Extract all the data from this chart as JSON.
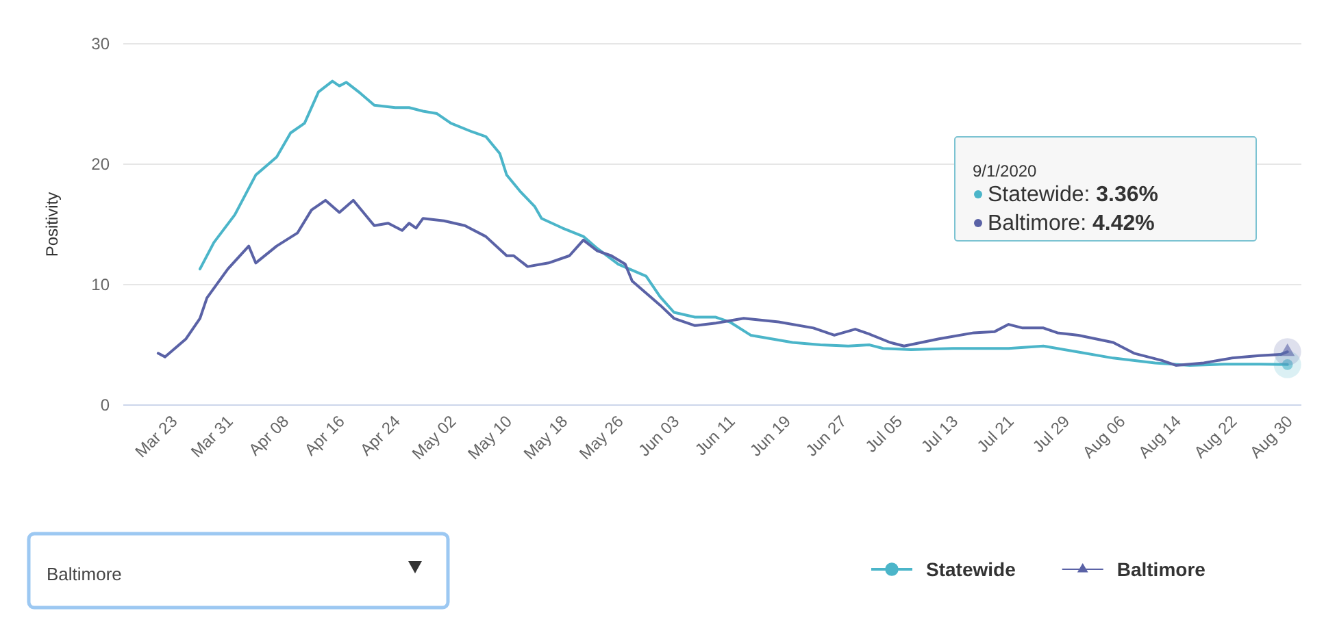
{
  "chart_data": {
    "type": "line",
    "ylabel": "Positivity",
    "ylim": [
      0,
      30
    ],
    "yticks": [
      0,
      10,
      20,
      30
    ],
    "grid": "y",
    "legend": "bottom right",
    "line_style": "solid",
    "xlim": [
      "2020-03-18",
      "2020-09-03"
    ],
    "xticks": [
      {
        "value": "2020-03-23",
        "label": "Mar 23"
      },
      {
        "value": "2020-03-31",
        "label": "Mar 31"
      },
      {
        "value": "2020-04-08",
        "label": "Apr 08"
      },
      {
        "value": "2020-04-16",
        "label": "Apr 16"
      },
      {
        "value": "2020-04-24",
        "label": "Apr 24"
      },
      {
        "value": "2020-05-02",
        "label": "May 02"
      },
      {
        "value": "2020-05-10",
        "label": "May 10"
      },
      {
        "value": "2020-05-18",
        "label": "May 18"
      },
      {
        "value": "2020-05-26",
        "label": "May 26"
      },
      {
        "value": "2020-06-03",
        "label": "Jun 03"
      },
      {
        "value": "2020-06-11",
        "label": "Jun 11"
      },
      {
        "value": "2020-06-19",
        "label": "Jun 19"
      },
      {
        "value": "2020-06-27",
        "label": "Jun 27"
      },
      {
        "value": "2020-07-05",
        "label": "Jul 05"
      },
      {
        "value": "2020-07-13",
        "label": "Jul 13"
      },
      {
        "value": "2020-07-21",
        "label": "Jul 21"
      },
      {
        "value": "2020-07-29",
        "label": "Jul 29"
      },
      {
        "value": "2020-08-06",
        "label": "Aug 06"
      },
      {
        "value": "2020-08-14",
        "label": "Aug 14"
      },
      {
        "value": "2020-08-22",
        "label": "Aug 22"
      },
      {
        "value": "2020-08-30",
        "label": "Aug 30"
      }
    ],
    "annotations": [
      "9/1/2020",
      "Statewide: 3.36%",
      "Baltimore: 4.42%",
      "Baltimore"
    ],
    "series": [
      {
        "name": "Statewide",
        "color": "#4bb5c9",
        "x": [
          "2020-03-29",
          "2020-03-31",
          "2020-04-03",
          "2020-04-06",
          "2020-04-09",
          "2020-04-11",
          "2020-04-13",
          "2020-04-15",
          "2020-04-17",
          "2020-04-18",
          "2020-04-19",
          "2020-04-21",
          "2020-04-23",
          "2020-04-26",
          "2020-04-28",
          "2020-04-30",
          "2020-05-02",
          "2020-05-04",
          "2020-05-07",
          "2020-05-09",
          "2020-05-11",
          "2020-05-12",
          "2020-05-14",
          "2020-05-16",
          "2020-05-17",
          "2020-05-20",
          "2020-05-23",
          "2020-05-25",
          "2020-05-28",
          "2020-06-01",
          "2020-06-03",
          "2020-06-05",
          "2020-06-08",
          "2020-06-11",
          "2020-06-13",
          "2020-06-16",
          "2020-06-19",
          "2020-06-22",
          "2020-06-26",
          "2020-06-30",
          "2020-07-03",
          "2020-07-05",
          "2020-07-09",
          "2020-07-15",
          "2020-07-23",
          "2020-07-28",
          "2020-08-02",
          "2020-08-07",
          "2020-08-13",
          "2020-08-18",
          "2020-08-23",
          "2020-08-28",
          "2020-09-01"
        ],
        "values": [
          11.3,
          13.5,
          15.8,
          19.1,
          20.6,
          22.6,
          23.4,
          26.0,
          26.9,
          26.5,
          26.8,
          25.9,
          24.9,
          24.7,
          24.7,
          24.4,
          24.2,
          23.4,
          22.7,
          22.3,
          20.9,
          19.1,
          17.7,
          16.5,
          15.5,
          14.7,
          14.0,
          13.0,
          11.7,
          10.7,
          9.0,
          7.7,
          7.3,
          7.3,
          6.9,
          5.8,
          5.5,
          5.2,
          5.0,
          4.9,
          5.0,
          4.7,
          4.6,
          4.7,
          4.7,
          4.9,
          4.4,
          3.9,
          3.5,
          3.3,
          3.4,
          3.4,
          3.36
        ]
      },
      {
        "name": "Baltimore",
        "color": "#5a62a6",
        "x": [
          "2020-03-23",
          "2020-03-24",
          "2020-03-27",
          "2020-03-29",
          "2020-03-30",
          "2020-04-02",
          "2020-04-05",
          "2020-04-06",
          "2020-04-09",
          "2020-04-12",
          "2020-04-14",
          "2020-04-16",
          "2020-04-18",
          "2020-04-20",
          "2020-04-23",
          "2020-04-25",
          "2020-04-27",
          "2020-04-28",
          "2020-04-29",
          "2020-04-30",
          "2020-05-03",
          "2020-05-06",
          "2020-05-09",
          "2020-05-12",
          "2020-05-13",
          "2020-05-15",
          "2020-05-18",
          "2020-05-21",
          "2020-05-23",
          "2020-05-25",
          "2020-05-27",
          "2020-05-29",
          "2020-05-30",
          "2020-06-03",
          "2020-06-05",
          "2020-06-08",
          "2020-06-11",
          "2020-06-15",
          "2020-06-20",
          "2020-06-25",
          "2020-06-28",
          "2020-07-01",
          "2020-07-03",
          "2020-07-06",
          "2020-07-08",
          "2020-07-13",
          "2020-07-18",
          "2020-07-21",
          "2020-07-23",
          "2020-07-25",
          "2020-07-28",
          "2020-07-30",
          "2020-08-02",
          "2020-08-07",
          "2020-08-10",
          "2020-08-14",
          "2020-08-16",
          "2020-08-20",
          "2020-08-24",
          "2020-08-28",
          "2020-08-31",
          "2020-09-01"
        ],
        "values": [
          4.3,
          4.0,
          5.5,
          7.2,
          8.9,
          11.3,
          13.2,
          11.8,
          13.2,
          14.3,
          16.2,
          17.0,
          16.0,
          17.0,
          14.9,
          15.1,
          14.5,
          15.1,
          14.7,
          15.5,
          15.3,
          14.9,
          14.0,
          12.4,
          12.4,
          11.5,
          11.8,
          12.4,
          13.7,
          12.8,
          12.4,
          11.7,
          10.3,
          8.3,
          7.2,
          6.6,
          6.8,
          7.2,
          6.9,
          6.4,
          5.8,
          6.3,
          5.9,
          5.2,
          4.9,
          5.5,
          6.0,
          6.1,
          6.7,
          6.4,
          6.4,
          6.0,
          5.8,
          5.2,
          4.3,
          3.7,
          3.3,
          3.5,
          3.9,
          4.1,
          4.2,
          4.42
        ]
      }
    ]
  }
}
